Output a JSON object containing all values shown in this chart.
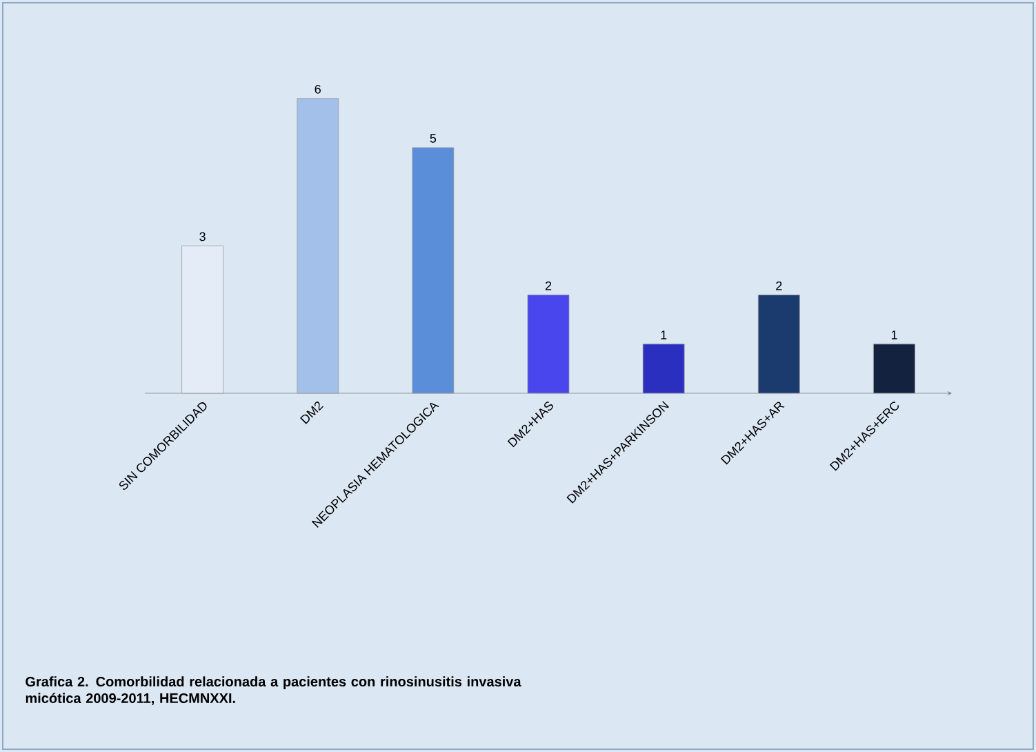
{
  "chart_data": {
    "type": "bar",
    "categories": [
      "SIN COMORBILIDAD",
      "DM2",
      "NEOPLASIA HEMATOLOGICA",
      "DM2+HAS",
      "DM2+HAS+PARKINSON",
      "DM2+HAS+AR",
      "DM2+HAS+ERC"
    ],
    "values": [
      3,
      6,
      5,
      2,
      1,
      2,
      1
    ],
    "colors": [
      "#e4ecf7",
      "#a3c0ea",
      "#5a8ed8",
      "#4a46ee",
      "#2b2fc0",
      "#1b3b6e",
      "#13233f"
    ],
    "data_labels": true,
    "annotations": [
      "Grafica 2. Comorbilidad relacionada a pacientes con rinosinusitis invasiva micótica 2009-2011, HECMNXXI."
    ]
  }
}
